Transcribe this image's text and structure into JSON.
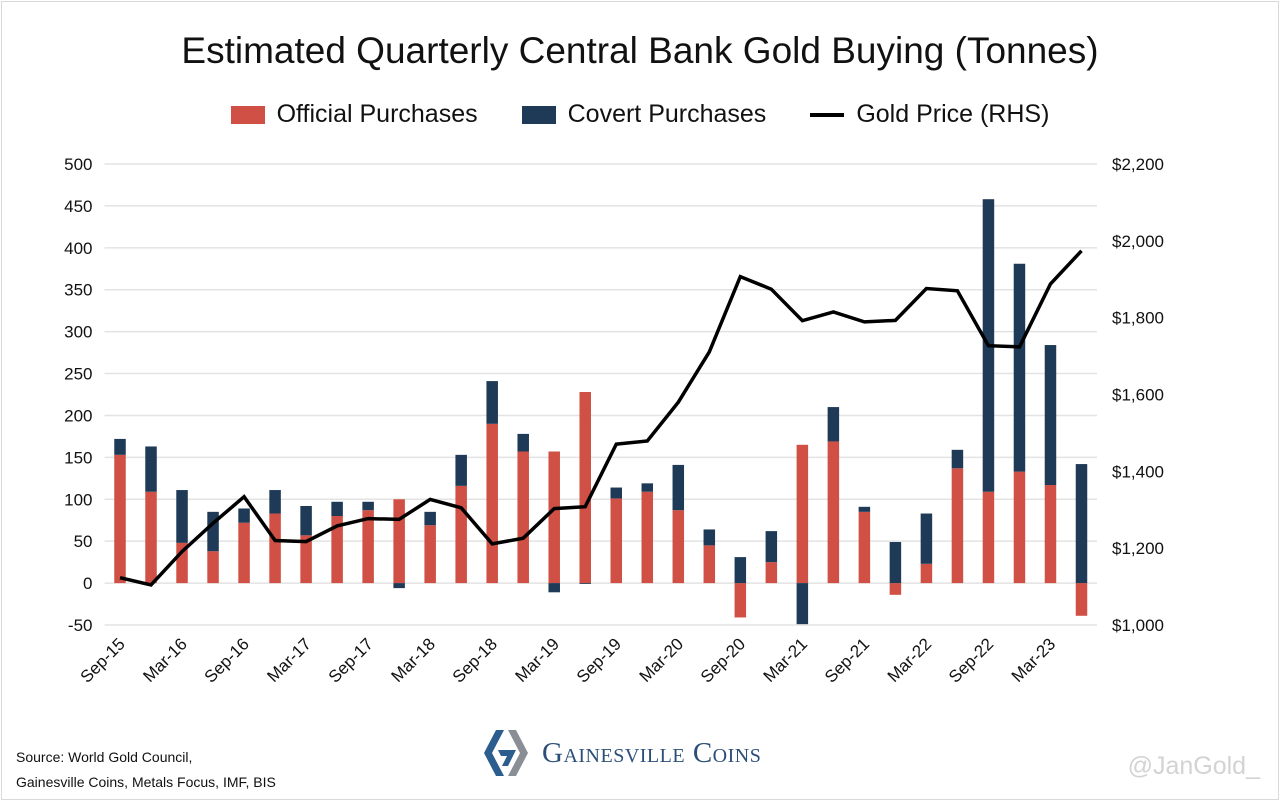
{
  "chart_data": {
    "type": "bar",
    "stacked": true,
    "title": "Estimated Quarterly Central Bank Gold Buying (Tonnes)",
    "categories": [
      "Sep-15",
      "Dec-15",
      "Mar-16",
      "Jun-16",
      "Sep-16",
      "Dec-16",
      "Mar-17",
      "Jun-17",
      "Sep-17",
      "Dec-17",
      "Mar-18",
      "Jun-18",
      "Sep-18",
      "Dec-18",
      "Mar-19",
      "Jun-19",
      "Sep-19",
      "Dec-19",
      "Mar-20",
      "Jun-20",
      "Sep-20",
      "Dec-20",
      "Mar-21",
      "Jun-21",
      "Sep-21",
      "Dec-21",
      "Mar-22",
      "Jun-22",
      "Sep-22",
      "Dec-22",
      "Mar-23",
      "Jun-23"
    ],
    "tick_labels": [
      "Sep-15",
      "Mar-16",
      "Sep-16",
      "Mar-17",
      "Sep-17",
      "Mar-18",
      "Sep-18",
      "Mar-19",
      "Sep-19",
      "Mar-20",
      "Sep-20",
      "Mar-21",
      "Sep-21",
      "Mar-22",
      "Sep-22",
      "Mar-23"
    ],
    "series": [
      {
        "name": "Official Purchases",
        "axis": "left",
        "color": "#D05045",
        "values": [
          153,
          109,
          48,
          38,
          72,
          83,
          57,
          80,
          87,
          100,
          69,
          116,
          190,
          157,
          157,
          228,
          101,
          109,
          87,
          45,
          -41,
          25,
          165,
          169,
          85,
          -14,
          23,
          137,
          109,
          133,
          117,
          -39
        ]
      },
      {
        "name": "Covert Purchases",
        "axis": "left",
        "color": "#1E3A57",
        "values": [
          19,
          54,
          63,
          47,
          17,
          28,
          35,
          17,
          10,
          -6,
          16,
          37,
          51,
          21,
          -11,
          -1,
          13,
          10,
          54,
          19,
          31,
          37,
          -49,
          41,
          6,
          49,
          60,
          22,
          349,
          248,
          167,
          142
        ]
      },
      {
        "name": "Gold Price (RHS)",
        "axis": "right",
        "type": "line",
        "color": "#000000",
        "values": [
          1123,
          1104,
          1191,
          1265,
          1334,
          1220,
          1217,
          1258,
          1277,
          1275,
          1327,
          1305,
          1211,
          1226,
          1303,
          1308,
          1471,
          1479,
          1580,
          1711,
          1907,
          1874,
          1792,
          1815,
          1789,
          1793,
          1876,
          1870,
          1727,
          1724,
          1888,
          1974
        ]
      }
    ],
    "ylim": [
      -50,
      500
    ],
    "yticks": [
      "-50",
      "0",
      "50",
      "100",
      "150",
      "200",
      "250",
      "300",
      "350",
      "400",
      "450",
      "500"
    ],
    "y2lim": [
      1000,
      2200
    ],
    "y2ticks": [
      "$1,000",
      "$1,200",
      "$1,400",
      "$1,600",
      "$1,800",
      "$2,000",
      "$2,200"
    ],
    "grid": true,
    "legend_placement": "top"
  },
  "footer": {
    "source_line1": "Source: World Gold Council,",
    "source_line2": "Gainesville Coins, Metals Focus, IMF, BIS",
    "brand": "Gainesville Coins",
    "handle": "@JanGold_"
  }
}
